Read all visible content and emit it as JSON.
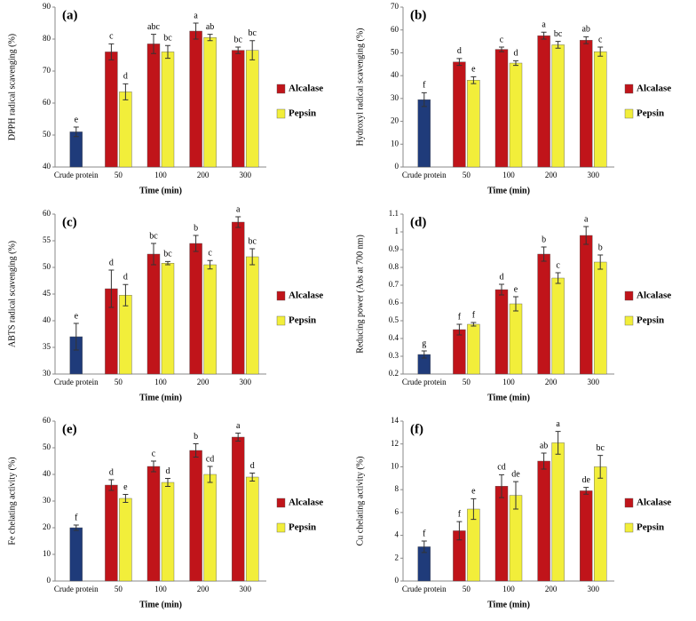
{
  "chart_data": [
    {
      "type": "bar",
      "title": "(a)",
      "y_label": "DPPH radical scavenging (%)",
      "x_label": "Time (min)",
      "categories": [
        "Crude protein",
        "50",
        "100",
        "200",
        "300"
      ],
      "ylim": [
        40,
        90
      ],
      "yticks": [
        40,
        50,
        60,
        70,
        80,
        90
      ],
      "series": [
        {
          "color": "#1f3b7a",
          "values": [
            51,
            null,
            null,
            null,
            null
          ],
          "errors": [
            1.5,
            null,
            null,
            null,
            null
          ],
          "letters": [
            "e",
            null,
            null,
            null,
            null
          ]
        },
        {
          "name": "Alcalase",
          "color": "#c0141a",
          "values": [
            null,
            76,
            78.5,
            82.5,
            76.5
          ],
          "errors": [
            null,
            2.5,
            3,
            2.5,
            1
          ],
          "letters": [
            null,
            "c",
            "abc",
            "a",
            "bc"
          ]
        },
        {
          "name": "Pepsin",
          "color": "#f2ee3a",
          "values": [
            null,
            63.5,
            76,
            80.5,
            76.5
          ],
          "errors": [
            null,
            2.5,
            2,
            1,
            3
          ],
          "letters": [
            null,
            "d",
            "bc",
            "ab",
            "bc"
          ]
        }
      ]
    },
    {
      "type": "bar",
      "title": "(b)",
      "y_label": "Hydroxyl radical scavenging (%)",
      "x_label": "Time (min)",
      "categories": [
        "Crude protein",
        "50",
        "100",
        "200",
        "300"
      ],
      "ylim": [
        0,
        70
      ],
      "yticks": [
        0,
        10,
        20,
        30,
        40,
        50,
        60,
        70
      ],
      "series": [
        {
          "color": "#1f3b7a",
          "values": [
            29.5,
            null,
            null,
            null,
            null
          ],
          "errors": [
            3,
            null,
            null,
            null,
            null
          ],
          "letters": [
            "f",
            null,
            null,
            null,
            null
          ]
        },
        {
          "name": "Alcalase",
          "color": "#c0141a",
          "values": [
            null,
            46,
            51.5,
            57.5,
            55.5
          ],
          "errors": [
            null,
            1.5,
            1,
            1.5,
            1.5
          ],
          "letters": [
            null,
            "d",
            "c",
            "a",
            "ab"
          ]
        },
        {
          "name": "Pepsin",
          "color": "#f2ee3a",
          "values": [
            null,
            38,
            45.5,
            53.5,
            50.5
          ],
          "errors": [
            null,
            1.5,
            1,
            1.5,
            2
          ],
          "letters": [
            null,
            "e",
            "d",
            "bc",
            "c"
          ]
        }
      ]
    },
    {
      "type": "bar",
      "title": "(c)",
      "y_label": "ABTS radical scavenging (%)",
      "x_label": "Time (min)",
      "categories": [
        "Crude protein",
        "50",
        "100",
        "200",
        "300"
      ],
      "ylim": [
        30,
        60
      ],
      "yticks": [
        30,
        35,
        40,
        45,
        50,
        55,
        60
      ],
      "series": [
        {
          "color": "#1f3b7a",
          "values": [
            37,
            null,
            null,
            null,
            null
          ],
          "errors": [
            2.5,
            null,
            null,
            null,
            null
          ],
          "letters": [
            "e",
            null,
            null,
            null,
            null
          ]
        },
        {
          "name": "Alcalase",
          "color": "#c0141a",
          "values": [
            null,
            46,
            52.5,
            54.5,
            58.5
          ],
          "errors": [
            null,
            3.5,
            2,
            1.5,
            1
          ],
          "letters": [
            null,
            "d",
            "bc",
            "b",
            "a"
          ]
        },
        {
          "name": "Pepsin",
          "color": "#f2ee3a",
          "values": [
            null,
            44.8,
            50.8,
            50.5,
            52
          ],
          "errors": [
            null,
            2,
            0.3,
            0.8,
            1.5
          ],
          "letters": [
            null,
            "d",
            "bc",
            "c",
            "bc"
          ]
        }
      ]
    },
    {
      "type": "bar",
      "title": "(d)",
      "y_label": "Reducing power (Abs at 700 nm)",
      "x_label": "Time (min)",
      "categories": [
        "Crude protein",
        "50",
        "100",
        "200",
        "300"
      ],
      "ylim": [
        0.2,
        1.1
      ],
      "yticks": [
        0.2,
        0.3,
        0.4,
        0.5,
        0.6,
        0.7,
        0.8,
        0.9,
        1,
        1.1
      ],
      "series": [
        {
          "color": "#1f3b7a",
          "values": [
            0.31,
            null,
            null,
            null,
            null
          ],
          "errors": [
            0.02,
            null,
            null,
            null,
            null
          ],
          "letters": [
            "g",
            null,
            null,
            null,
            null
          ]
        },
        {
          "name": "Alcalase",
          "color": "#c0141a",
          "values": [
            null,
            0.45,
            0.675,
            0.875,
            0.98
          ],
          "errors": [
            null,
            0.03,
            0.03,
            0.04,
            0.05
          ],
          "letters": [
            null,
            "f",
            "d",
            "b",
            "a"
          ]
        },
        {
          "name": "Pepsin",
          "color": "#f2ee3a",
          "values": [
            null,
            0.48,
            0.595,
            0.74,
            0.83
          ],
          "errors": [
            null,
            0.01,
            0.04,
            0.03,
            0.04
          ],
          "letters": [
            null,
            "f",
            "e",
            "c",
            "b"
          ]
        }
      ]
    },
    {
      "type": "bar",
      "title": "(e)",
      "y_label": "Fe chelating activity (%)",
      "x_label": "Time (min)",
      "categories": [
        "Crude protein",
        "50",
        "100",
        "200",
        "300"
      ],
      "ylim": [
        0,
        60
      ],
      "yticks": [
        0,
        10,
        20,
        30,
        40,
        50,
        60
      ],
      "series": [
        {
          "color": "#1f3b7a",
          "values": [
            20,
            null,
            null,
            null,
            null
          ],
          "errors": [
            1,
            null,
            null,
            null,
            null
          ],
          "letters": [
            "f",
            null,
            null,
            null,
            null
          ]
        },
        {
          "name": "Alcalase",
          "color": "#c0141a",
          "values": [
            null,
            36,
            43,
            49,
            54
          ],
          "errors": [
            null,
            2,
            2,
            2.5,
            1.5
          ],
          "letters": [
            null,
            "d",
            "c",
            "b",
            "a"
          ]
        },
        {
          "name": "Pepsin",
          "color": "#f2ee3a",
          "values": [
            null,
            31,
            37,
            40,
            39
          ],
          "errors": [
            null,
            1.5,
            1.5,
            3,
            1.5
          ],
          "letters": [
            null,
            "e",
            "d",
            "cd",
            "d"
          ]
        }
      ]
    },
    {
      "type": "bar",
      "title": "(f)",
      "y_label": "Cu chelating activity (%)",
      "x_label": "Time (min)",
      "categories": [
        "Crude protein",
        "50",
        "100",
        "200",
        "300"
      ],
      "ylim": [
        0,
        14
      ],
      "yticks": [
        0,
        2,
        4,
        6,
        8,
        10,
        12,
        14
      ],
      "series": [
        {
          "color": "#1f3b7a",
          "values": [
            3,
            null,
            null,
            null,
            null
          ],
          "errors": [
            0.5,
            null,
            null,
            null,
            null
          ],
          "letters": [
            "f",
            null,
            null,
            null,
            null
          ]
        },
        {
          "name": "Alcalase",
          "color": "#c0141a",
          "values": [
            null,
            4.4,
            8.3,
            10.5,
            7.9
          ],
          "errors": [
            null,
            0.8,
            1,
            0.7,
            0.3
          ],
          "letters": [
            null,
            "f",
            "cd",
            "ab",
            "de"
          ]
        },
        {
          "name": "Pepsin",
          "color": "#f2ee3a",
          "values": [
            null,
            6.3,
            7.5,
            12.1,
            10
          ],
          "errors": [
            null,
            0.9,
            1.2,
            1,
            1
          ],
          "letters": [
            null,
            "e",
            "de",
            "a",
            "bc"
          ]
        }
      ]
    }
  ]
}
